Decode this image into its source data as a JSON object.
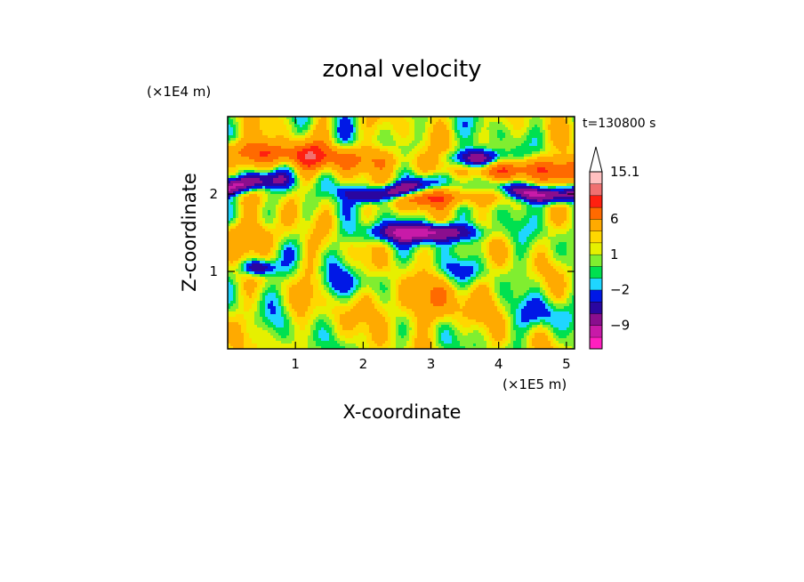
{
  "chart_data": {
    "type": "heatmap",
    "title": "zonal velocity",
    "xlabel": "X-coordinate",
    "ylabel": "Z-coordinate",
    "x_scale_label": "(×1E5 m)",
    "y_scale_label": "(×1E4 m)",
    "time_label": "t=130800 s",
    "xlim": [
      0,
      5.12
    ],
    "ylim": [
      0,
      3.0
    ],
    "x_ticks": [
      {
        "value": 1,
        "label": "1"
      },
      {
        "value": 2,
        "label": "2"
      },
      {
        "value": 3,
        "label": "3"
      },
      {
        "value": 4,
        "label": "4"
      },
      {
        "value": 5,
        "label": "5"
      }
    ],
    "y_ticks": [
      {
        "value": 1,
        "label": "1"
      },
      {
        "value": 2,
        "label": "2"
      }
    ],
    "colorbar": {
      "levels": [
        -15.1,
        -12,
        -9,
        -6,
        -4,
        -2,
        -1,
        0,
        1,
        2,
        3,
        6,
        9,
        12,
        15.1
      ],
      "colors": [
        "#ff1fbf",
        "#c81aa8",
        "#8a0e8e",
        "#2a06a0",
        "#0018e6",
        "#1fd6ff",
        "#00e050",
        "#80ee30",
        "#e6f000",
        "#ffd700",
        "#ffaa00",
        "#ff6a00",
        "#ff2010",
        "#f07070",
        "#ffc0c0"
      ],
      "labels": [
        {
          "value": 15.1,
          "label": "15.1"
        },
        {
          "value": 6,
          "label": "6"
        },
        {
          "value": 1,
          "label": "1"
        },
        {
          "value": -2,
          "label": "−2"
        },
        {
          "value": -9,
          "label": "−9"
        }
      ],
      "extend": "max"
    }
  }
}
